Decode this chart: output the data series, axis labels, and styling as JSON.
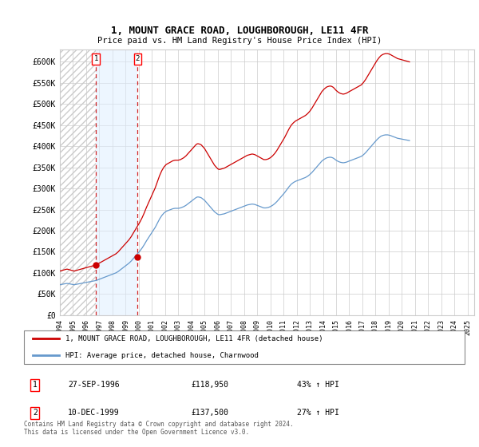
{
  "title": "1, MOUNT GRACE ROAD, LOUGHBOROUGH, LE11 4FR",
  "subtitle": "Price paid vs. HM Land Registry's House Price Index (HPI)",
  "legend_line1": "1, MOUNT GRACE ROAD, LOUGHBOROUGH, LE11 4FR (detached house)",
  "legend_line2": "HPI: Average price, detached house, Charnwood",
  "sale1_date": "27-SEP-1996",
  "sale1_price_str": "£118,950",
  "sale1_hpi": "43% ↑ HPI",
  "sale2_date": "10-DEC-1999",
  "sale2_price_str": "£137,500",
  "sale2_hpi": "27% ↑ HPI",
  "footnote": "Contains HM Land Registry data © Crown copyright and database right 2024.\nThis data is licensed under the Open Government Licence v3.0.",
  "ylim": [
    0,
    630000
  ],
  "ytick_vals": [
    0,
    50000,
    100000,
    150000,
    200000,
    250000,
    300000,
    350000,
    400000,
    450000,
    500000,
    550000,
    600000
  ],
  "ytick_labels": [
    "£0",
    "£50K",
    "£100K",
    "£150K",
    "£200K",
    "£250K",
    "£300K",
    "£350K",
    "£400K",
    "£450K",
    "£500K",
    "£550K",
    "£600K"
  ],
  "red_color": "#cc0000",
  "blue_color": "#6699cc",
  "sale1_x": 1996.75,
  "sale2_x": 1999.917,
  "sale1_price": 118950,
  "sale2_price": 137500,
  "xlim": [
    1994.0,
    2025.5
  ],
  "hpi_start_year": 1994.0,
  "hpi_month_step": 0.08333,
  "hpi_values": [
    72000,
    72500,
    73000,
    73500,
    74000,
    74500,
    75000,
    75000,
    74500,
    74000,
    73500,
    73000,
    72500,
    72000,
    72500,
    73000,
    73500,
    74000,
    74500,
    75000,
    75500,
    76000,
    76500,
    77000,
    77500,
    78000,
    78500,
    79000,
    79500,
    80000,
    80500,
    81000,
    81500,
    82000,
    83000,
    84000,
    85000,
    86000,
    87000,
    88000,
    89000,
    90000,
    91000,
    92000,
    93000,
    94000,
    95000,
    96000,
    97000,
    98000,
    99000,
    100000,
    101500,
    103000,
    105000,
    107000,
    109000,
    111000,
    113000,
    115000,
    117000,
    119000,
    121000,
    123000,
    125500,
    128000,
    131000,
    134000,
    137000,
    140000,
    143000,
    146000,
    149000,
    152000,
    155500,
    159000,
    163000,
    167000,
    171500,
    176000,
    180000,
    184000,
    188000,
    192000,
    196000,
    200000,
    204000,
    208000,
    213000,
    218000,
    223000,
    228000,
    232000,
    236000,
    239000,
    242000,
    244000,
    246000,
    247000,
    248000,
    249000,
    250000,
    251000,
    252000,
    252500,
    253000,
    253000,
    253000,
    253000,
    253500,
    254000,
    255000,
    256000,
    257000,
    258500,
    260000,
    262000,
    264000,
    266000,
    268000,
    270000,
    272000,
    274000,
    276000,
    278000,
    279500,
    280000,
    279500,
    279000,
    278000,
    276000,
    274000,
    272000,
    269000,
    266000,
    263000,
    260000,
    257000,
    254000,
    251000,
    248000,
    245000,
    243000,
    241000,
    239000,
    238000,
    238000,
    238500,
    239000,
    239500,
    240000,
    241000,
    242000,
    243000,
    244000,
    245000,
    246000,
    247000,
    248000,
    249000,
    250000,
    251000,
    252000,
    253000,
    254000,
    255000,
    256000,
    257000,
    258000,
    259000,
    260000,
    261000,
    261500,
    262000,
    262500,
    263000,
    263000,
    262500,
    262000,
    261000,
    260000,
    259000,
    258000,
    257000,
    256000,
    255000,
    254000,
    254000,
    254000,
    254500,
    255000,
    256000,
    257000,
    258500,
    260000,
    262000,
    264000,
    266500,
    269000,
    272000,
    275000,
    278000,
    281000,
    284000,
    287000,
    290000,
    293500,
    297000,
    300500,
    304000,
    307000,
    310000,
    312000,
    314000,
    315500,
    317000,
    318000,
    319000,
    320000,
    321000,
    322000,
    323000,
    324000,
    325000,
    326000,
    327500,
    329000,
    331000,
    333000,
    335500,
    338000,
    341000,
    344000,
    347000,
    350000,
    353000,
    356000,
    359000,
    362000,
    365000,
    367000,
    369000,
    370500,
    372000,
    373000,
    373500,
    374000,
    374000,
    373500,
    372500,
    371000,
    369000,
    367000,
    365500,
    364000,
    363000,
    362000,
    361500,
    361000,
    361000,
    361500,
    362000,
    363000,
    364000,
    365000,
    366000,
    367000,
    368000,
    369000,
    370000,
    371000,
    372000,
    373000,
    374000,
    375000,
    376000,
    378000,
    380000,
    382500,
    385000,
    388000,
    391000,
    394000,
    397000,
    400000,
    403000,
    406000,
    409000,
    412000,
    415000,
    417500,
    420000,
    422000,
    424000,
    425000,
    426000,
    426500,
    427000,
    427000,
    427000,
    426500,
    426000,
    425000,
    424000,
    423000,
    422000,
    421000,
    420000,
    419000,
    418500,
    418000,
    417500,
    417000,
    416500,
    416000,
    415500,
    415000,
    414500,
    414000,
    413500
  ]
}
